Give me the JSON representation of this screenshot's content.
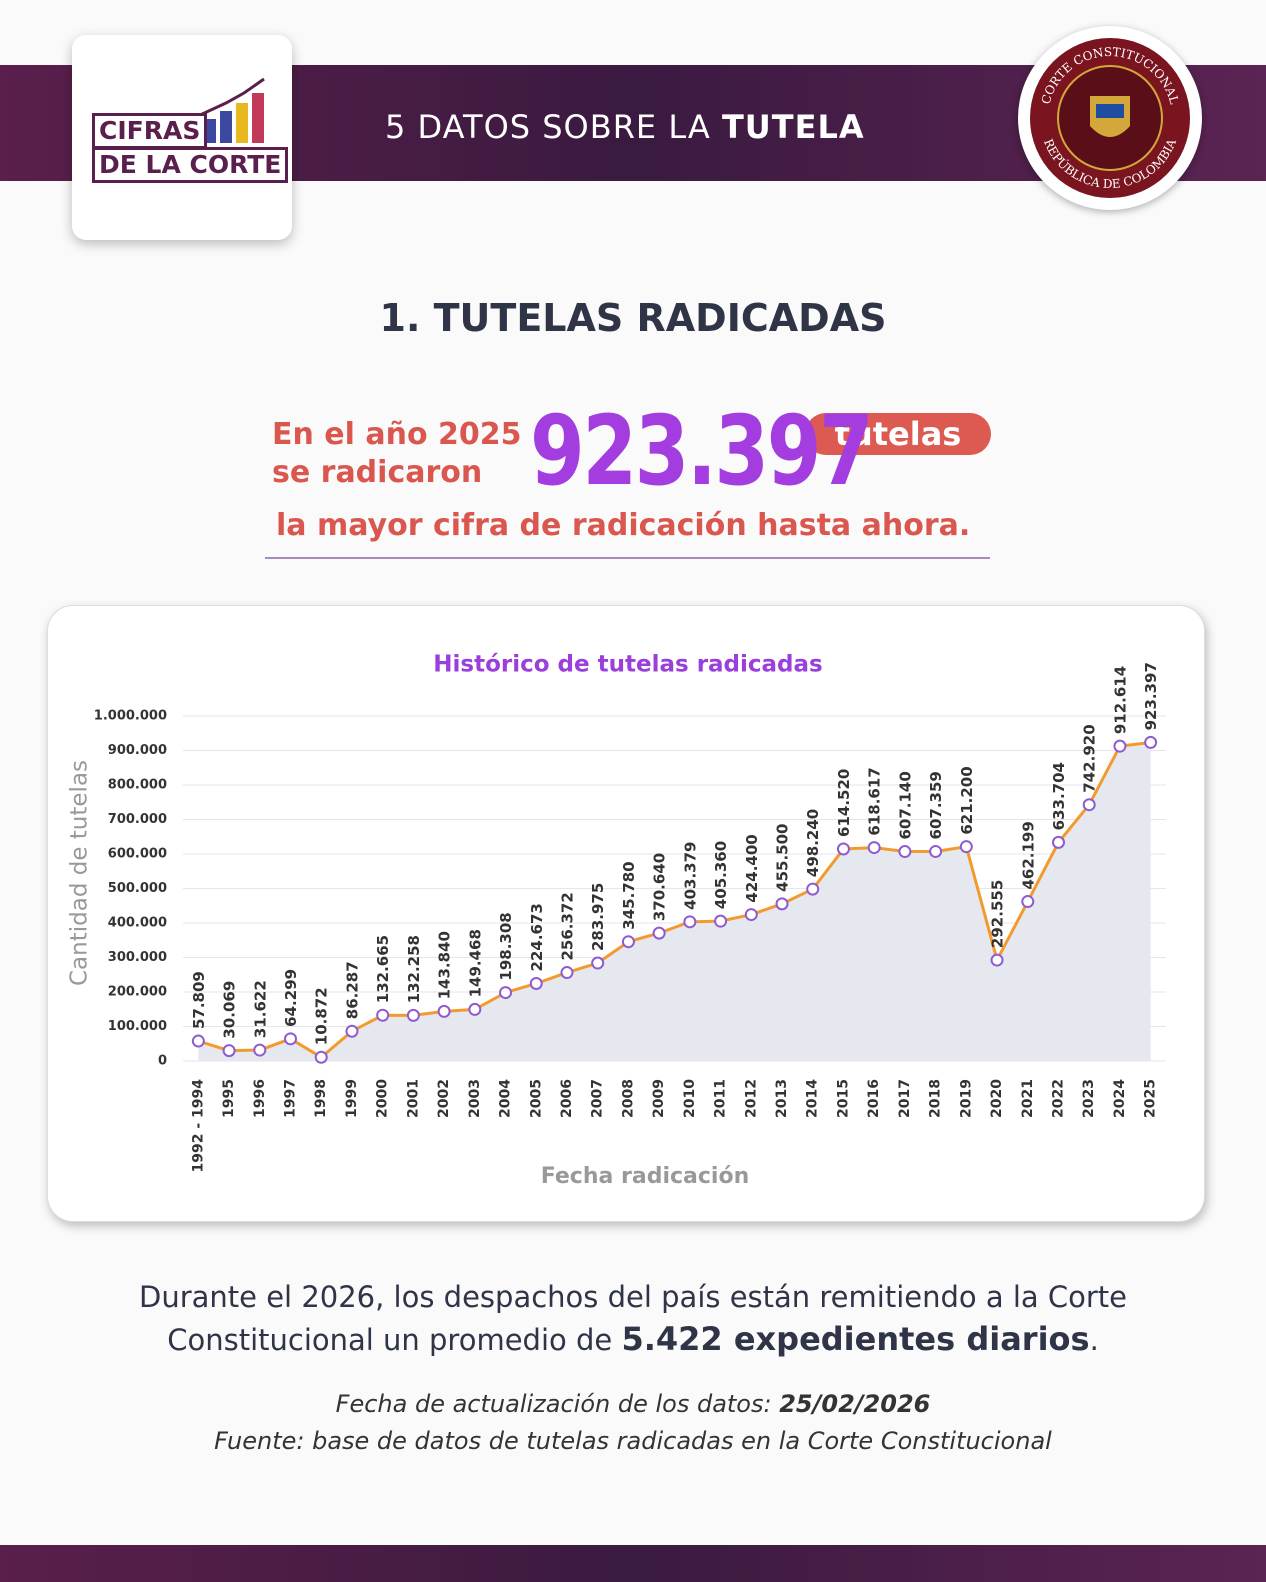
{
  "logo": {
    "line1": "CIFRAS",
    "line2": "DE LA CORTE"
  },
  "header": {
    "title_prefix": "5 DATOS SOBRE LA ",
    "title_emphasis": "TUTELA"
  },
  "seal": {
    "top": "CORTE CONSTITUCIONAL",
    "bottom": "REPÚBLICA DE COLOMBIA"
  },
  "section_title": "1. TUTELAS RADICADAS",
  "highlight": {
    "line1": "En el año 2025",
    "line2": "se radicaron",
    "figure": "923.397",
    "unit": "tutelas",
    "caption": "la mayor cifra de radicación hasta ahora."
  },
  "chart_data": {
    "type": "line",
    "title": "Histórico de tutelas radicadas",
    "x_label": "Fecha radicación",
    "y_label": "Cantidad de tutelas",
    "categories": [
      "1992 - 1994",
      "1995",
      "1996",
      "1997",
      "1998",
      "1999",
      "2000",
      "2001",
      "2002",
      "2003",
      "2004",
      "2005",
      "2006",
      "2007",
      "2008",
      "2009",
      "2010",
      "2011",
      "2012",
      "2013",
      "2014",
      "2015",
      "2016",
      "2017",
      "2018",
      "2019",
      "2020",
      "2021",
      "2022",
      "2023",
      "2024",
      "2025"
    ],
    "values": [
      57809,
      30069,
      31622,
      64299,
      10872,
      86287,
      132665,
      132258,
      143840,
      149468,
      198308,
      224673,
      256372,
      283975,
      345780,
      370640,
      403379,
      405360,
      424400,
      455500,
      498240,
      614520,
      618617,
      607140,
      607359,
      621200,
      292555,
      462199,
      633704,
      742920,
      912614,
      923397
    ],
    "value_labels": [
      "57.809",
      "30.069",
      "31.622",
      "64.299",
      "10.872",
      "86.287",
      "132.665",
      "132.258",
      "143.840",
      "149.468",
      "198.308",
      "224.673",
      "256.372",
      "283.975",
      "345.780",
      "370.640",
      "403.379",
      "405.360",
      "424.400",
      "455.500",
      "498.240",
      "614.520",
      "618.617",
      "607.140",
      "607.359",
      "621.200",
      "292.555",
      "462.199",
      "633.704",
      "742.920",
      "912.614",
      "923.397"
    ],
    "color": "#f29a2e",
    "area_color": "#e6e8f0",
    "marker_color": "#8e5bd0",
    "ylim": [
      0,
      1000000
    ],
    "yticks": [
      0,
      {
        "value": 100000,
        "label": "100.000"
      },
      {
        "value": 200000,
        "label": "200.000"
      },
      {
        "value": 300000,
        "label": "300.000"
      },
      {
        "value": 400000,
        "label": "400.000"
      },
      {
        "value": 500000,
        "label": "500.000"
      },
      {
        "value": 600000,
        "label": "600.000"
      },
      {
        "value": 700000,
        "label": "700.000"
      },
      {
        "value": 800000,
        "label": "800.000"
      },
      {
        "value": 900000,
        "label": "900.000"
      },
      {
        "value": 1000000,
        "label": "1.000.000"
      }
    ],
    "grid": true
  },
  "footer": {
    "text_prefix": "Durante el 2026, los despachos del país están remitiendo a la Corte Constitucional un promedio de ",
    "text_emphasis": "5.422 expedientes diarios",
    "text_suffix": ".",
    "update_prefix": "Fecha de actualización de los datos: ",
    "update_date": "25/02/2026",
    "source": "Fuente: base de datos de tutelas radicadas en la Corte Constitucional"
  }
}
